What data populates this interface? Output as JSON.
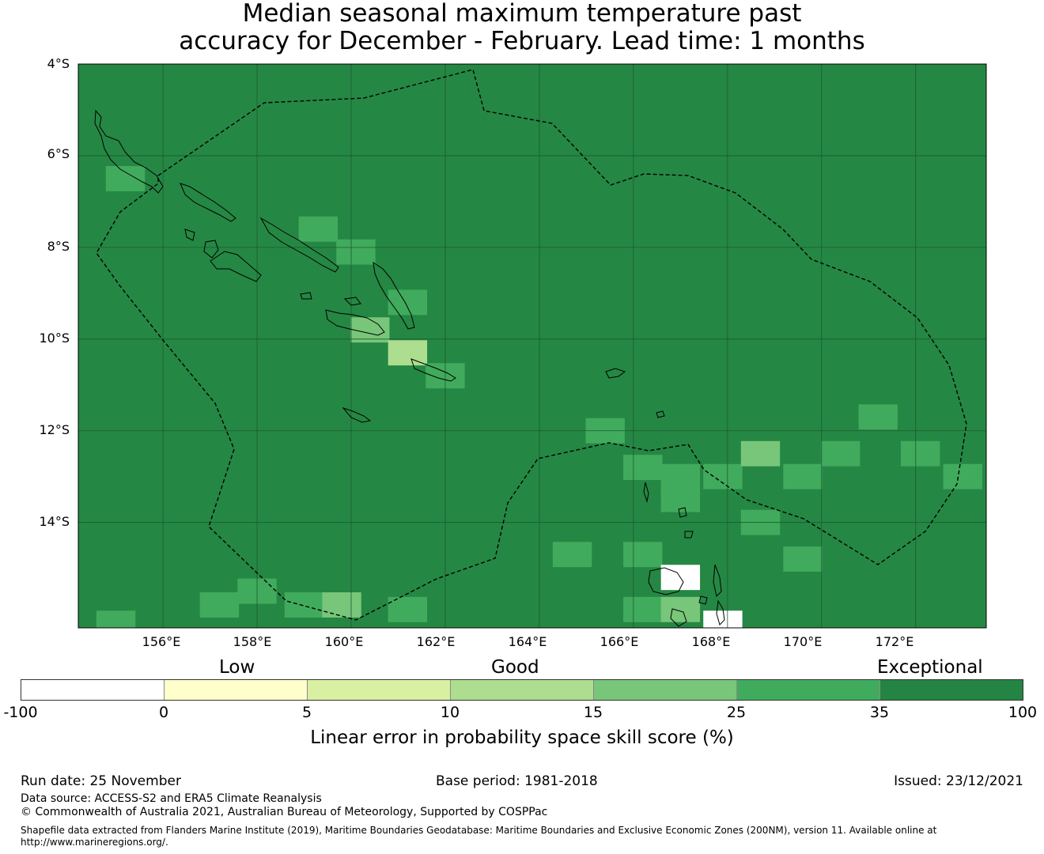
{
  "title": {
    "line1": "Median seasonal maximum temperature past",
    "line2": "accuracy for December - February. Lead time: 1 months"
  },
  "map": {
    "background_color": "#258744",
    "lat_labels": [
      "4°S",
      "6°S",
      "8°S",
      "10°S",
      "12°S",
      "14°S"
    ],
    "lon_labels": [
      "156°E",
      "158°E",
      "160°E",
      "162°E",
      "164°E",
      "166°E",
      "168°E",
      "170°E",
      "172°E"
    ],
    "lat_range": [
      -4,
      -16.3
    ],
    "lon_range": [
      154.2,
      173.5
    ],
    "eez_boundary": "dashed",
    "skill_cells": [
      {
        "lat": -6.5,
        "lon": 155.2,
        "value": 30
      },
      {
        "lat": -7.6,
        "lon": 159.3,
        "value": 30
      },
      {
        "lat": -8.1,
        "lon": 160.1,
        "value": 30
      },
      {
        "lat": -9.2,
        "lon": 161.2,
        "value": 30
      },
      {
        "lat": -9.8,
        "lon": 160.4,
        "value": 20
      },
      {
        "lat": -10.3,
        "lon": 161.2,
        "value": 12
      },
      {
        "lat": -10.8,
        "lon": 162.0,
        "value": 30
      },
      {
        "lat": -12.0,
        "lon": 165.4,
        "value": 30
      },
      {
        "lat": -12.8,
        "lon": 166.2,
        "value": 30
      },
      {
        "lat": -13.0,
        "lon": 167.0,
        "value": 30
      },
      {
        "lat": -13.0,
        "lon": 167.9,
        "value": 30
      },
      {
        "lat": -12.5,
        "lon": 168.7,
        "value": 20
      },
      {
        "lat": -13.0,
        "lon": 169.6,
        "value": 30
      },
      {
        "lat": -12.5,
        "lon": 170.4,
        "value": 30
      },
      {
        "lat": -11.7,
        "lon": 171.2,
        "value": 30
      },
      {
        "lat": -12.5,
        "lon": 172.1,
        "value": 30
      },
      {
        "lat": -13.0,
        "lon": 173.0,
        "value": 30
      },
      {
        "lat": -13.5,
        "lon": 167.0,
        "value": 30
      },
      {
        "lat": -14.0,
        "lon": 168.7,
        "value": 30
      },
      {
        "lat": -14.7,
        "lon": 164.7,
        "value": 30
      },
      {
        "lat": -14.7,
        "lon": 166.2,
        "value": 30
      },
      {
        "lat": -14.8,
        "lon": 169.6,
        "value": 30
      },
      {
        "lat": -15.2,
        "lon": 167.0,
        "value": -50
      },
      {
        "lat": -15.5,
        "lon": 158.0,
        "value": 30
      },
      {
        "lat": -15.8,
        "lon": 157.2,
        "value": 30
      },
      {
        "lat": -15.8,
        "lon": 159.0,
        "value": 30
      },
      {
        "lat": -15.8,
        "lon": 159.8,
        "value": 20
      },
      {
        "lat": -15.9,
        "lon": 161.2,
        "value": 30
      },
      {
        "lat": -15.9,
        "lon": 166.2,
        "value": 30
      },
      {
        "lat": -15.9,
        "lon": 167.0,
        "value": 20
      },
      {
        "lat": -16.2,
        "lon": 167.9,
        "value": -50
      },
      {
        "lat": -16.2,
        "lon": 155.0,
        "value": 30
      }
    ]
  },
  "legend": {
    "category_labels": {
      "low": "Low",
      "good": "Good",
      "exceptional": "Exceptional"
    },
    "bins": [
      {
        "from": -100,
        "to": 0,
        "color": "#ffffff"
      },
      {
        "from": 0,
        "to": 5,
        "color": "#ffffcc"
      },
      {
        "from": 5,
        "to": 10,
        "color": "#d9f0a3"
      },
      {
        "from": 10,
        "to": 15,
        "color": "#addd8e"
      },
      {
        "from": 15,
        "to": 25,
        "color": "#78c679"
      },
      {
        "from": 25,
        "to": 35,
        "color": "#41ab5d"
      },
      {
        "from": 35,
        "to": 100,
        "color": "#238443"
      }
    ],
    "ticks": [
      "-100",
      "0",
      "5",
      "10",
      "15",
      "25",
      "35",
      "100"
    ],
    "title": "Linear error in probability space skill score (%)"
  },
  "footer": {
    "run_date": "Run date: 25 November",
    "base_period": "Base period: 1981-2018",
    "issued": "Issued: 23/12/2021",
    "data_source": "Data source: ACCESS-S2 and ERA5 Climate Reanalysis",
    "copyright": "© Commonwealth of Australia 2021, Australian Bureau of Meteorology, Supported by COSPPac",
    "shapefile_note": "Shapefile data extracted from Flanders Marine Institute (2019), Maritime Boundaries Geodatabase: Maritime Boundaries and Exclusive Economic Zones (200NM), version 11. Available online at http://www.marineregions.org/."
  }
}
